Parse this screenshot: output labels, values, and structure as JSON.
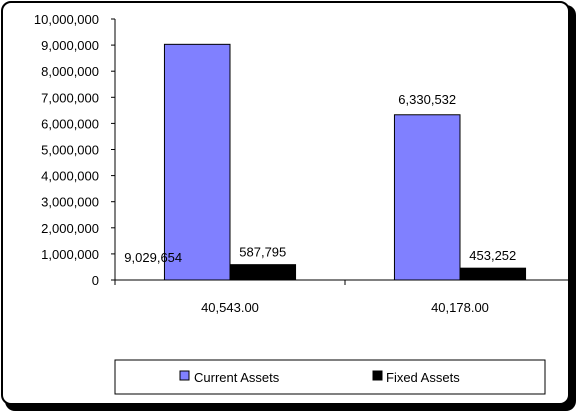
{
  "chart_data": {
    "type": "bar",
    "categories": [
      "40,543.00",
      "40,178.00"
    ],
    "series": [
      {
        "name": "Current Assets",
        "values": [
          9029654,
          6330532
        ],
        "color": "#8080ff",
        "labels": [
          "9,029,654",
          "6,330,532"
        ]
      },
      {
        "name": "Fixed Assets",
        "values": [
          587795,
          453252
        ],
        "color": "#000000",
        "labels": [
          "587,795",
          "453,252"
        ]
      }
    ],
    "ylim": [
      0,
      10000000
    ],
    "yticks": [
      {
        "value": 0,
        "label": "0"
      },
      {
        "value": 1000000,
        "label": "1,000,000"
      },
      {
        "value": 2000000,
        "label": "2,000,000"
      },
      {
        "value": 3000000,
        "label": "3,000,000"
      },
      {
        "value": 4000000,
        "label": "4,000,000"
      },
      {
        "value": 5000000,
        "label": "5,000,000"
      },
      {
        "value": 6000000,
        "label": "6,000,000"
      },
      {
        "value": 7000000,
        "label": "7,000,000"
      },
      {
        "value": 8000000,
        "label": "8,000,000"
      },
      {
        "value": 9000000,
        "label": "9,000,000"
      },
      {
        "value": 10000000,
        "label": "10,000,000"
      }
    ],
    "grid": false,
    "legend": "bottom"
  }
}
